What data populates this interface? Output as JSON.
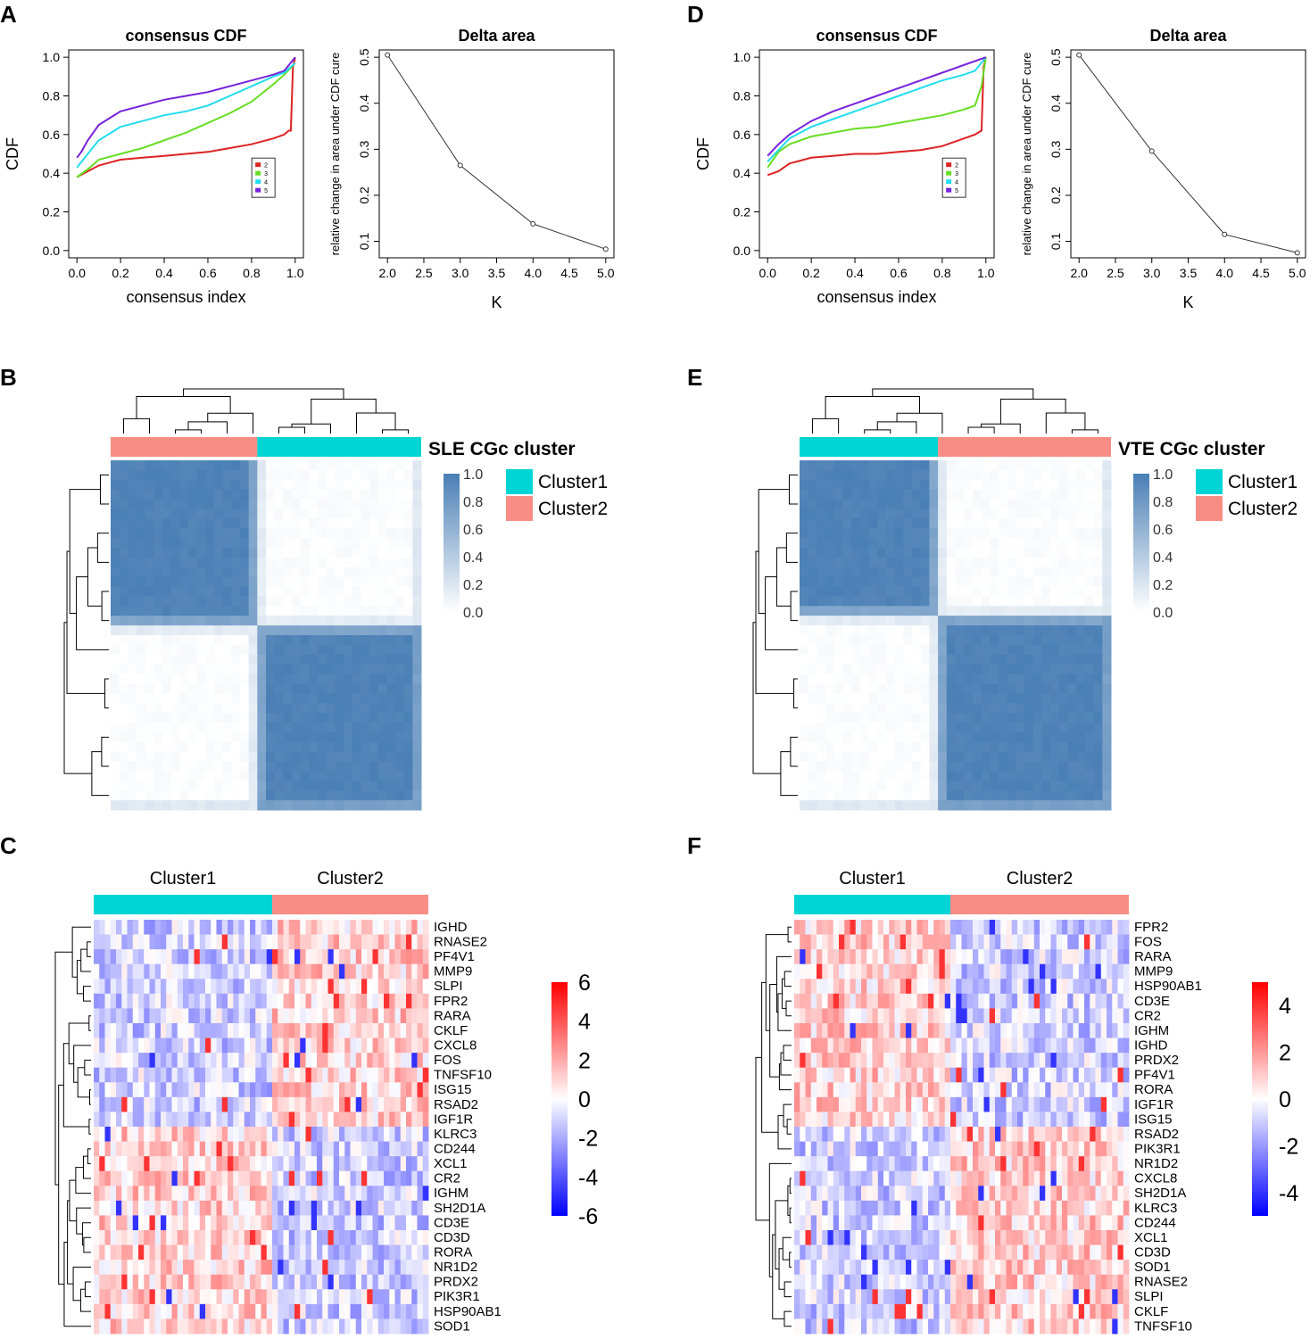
{
  "panel_letters": {
    "A": "A",
    "B": "B",
    "C": "C",
    "D": "D",
    "E": "E",
    "F": "F"
  },
  "colors": {
    "cluster1": "#00d4d4",
    "cluster2": "#f78d85",
    "consensus_high": "#4a7fb5",
    "heat_high": "#ff0000",
    "heat_low": "#0000ff",
    "k2": "#dd2222",
    "k3": "#66dd22",
    "k4": "#22ddee",
    "k5": "#7722dd"
  },
  "chart_data": [
    {
      "id": "A_cdf",
      "type": "line",
      "title": "consensus CDF",
      "xlabel": "consensus index",
      "ylabel": "CDF",
      "xlim": [
        0,
        1
      ],
      "ylim": [
        0,
        1
      ],
      "xticks": [
        "0.0",
        "0.2",
        "0.4",
        "0.6",
        "0.8",
        "1.0"
      ],
      "yticks": [
        "0.0",
        "0.2",
        "0.4",
        "0.6",
        "0.8",
        "1.0"
      ],
      "legend": [
        "2",
        "3",
        "4",
        "5"
      ],
      "series": [
        {
          "name": "2",
          "x": [
            0,
            0.05,
            0.1,
            0.2,
            0.3,
            0.4,
            0.5,
            0.6,
            0.7,
            0.8,
            0.9,
            0.95,
            0.97,
            0.98,
            0.99,
            1.0
          ],
          "y": [
            0.38,
            0.41,
            0.44,
            0.47,
            0.48,
            0.49,
            0.5,
            0.51,
            0.53,
            0.55,
            0.58,
            0.6,
            0.62,
            0.62,
            0.95,
            1.0
          ]
        },
        {
          "name": "3",
          "x": [
            0,
            0.05,
            0.1,
            0.2,
            0.3,
            0.4,
            0.5,
            0.6,
            0.7,
            0.8,
            0.9,
            0.95,
            1.0
          ],
          "y": [
            0.38,
            0.42,
            0.47,
            0.5,
            0.53,
            0.57,
            0.61,
            0.66,
            0.71,
            0.77,
            0.86,
            0.91,
            0.97
          ]
        },
        {
          "name": "4",
          "x": [
            0,
            0.05,
            0.1,
            0.2,
            0.3,
            0.4,
            0.5,
            0.6,
            0.7,
            0.8,
            0.9,
            0.95,
            1.0
          ],
          "y": [
            0.43,
            0.5,
            0.57,
            0.64,
            0.67,
            0.7,
            0.72,
            0.75,
            0.8,
            0.85,
            0.9,
            0.92,
            0.97
          ]
        },
        {
          "name": "5",
          "x": [
            0,
            0.02,
            0.05,
            0.1,
            0.2,
            0.3,
            0.4,
            0.5,
            0.6,
            0.7,
            0.8,
            0.9,
            0.95,
            1.0
          ],
          "y": [
            0.48,
            0.51,
            0.57,
            0.65,
            0.72,
            0.75,
            0.78,
            0.8,
            0.82,
            0.85,
            0.88,
            0.91,
            0.93,
            1.0
          ]
        }
      ]
    },
    {
      "id": "A_delta",
      "type": "line",
      "title": "Delta area",
      "xlabel": "K",
      "ylabel": "relative change in area under CDF cure",
      "xlim": [
        2,
        5
      ],
      "ylim": [
        0.08,
        0.5
      ],
      "xticks": [
        "2.0",
        "2.5",
        "3.0",
        "3.5",
        "4.0",
        "4.5",
        "5.0"
      ],
      "yticks": [
        "0.1",
        "0.2",
        "0.3",
        "0.4",
        "0.5"
      ],
      "series": [
        {
          "name": "delta",
          "x": [
            2,
            3,
            4,
            5
          ],
          "y": [
            0.505,
            0.265,
            0.138,
            0.083
          ]
        }
      ]
    },
    {
      "id": "D_cdf",
      "type": "line",
      "title": "consensus CDF",
      "xlabel": "consensus index",
      "ylabel": "CDF",
      "xlim": [
        0,
        1
      ],
      "ylim": [
        0,
        1
      ],
      "xticks": [
        "0.0",
        "0.2",
        "0.4",
        "0.6",
        "0.8",
        "1.0"
      ],
      "yticks": [
        "0.0",
        "0.2",
        "0.4",
        "0.6",
        "0.8",
        "1.0"
      ],
      "legend": [
        "2",
        "3",
        "4",
        "5"
      ],
      "series": [
        {
          "name": "2",
          "x": [
            0,
            0.05,
            0.1,
            0.2,
            0.3,
            0.4,
            0.5,
            0.6,
            0.7,
            0.8,
            0.9,
            0.95,
            0.98,
            0.99,
            1.0
          ],
          "y": [
            0.39,
            0.41,
            0.45,
            0.48,
            0.49,
            0.5,
            0.5,
            0.51,
            0.52,
            0.54,
            0.58,
            0.6,
            0.62,
            0.95,
            1.0
          ]
        },
        {
          "name": "3",
          "x": [
            0,
            0.05,
            0.1,
            0.2,
            0.3,
            0.4,
            0.5,
            0.6,
            0.7,
            0.8,
            0.9,
            0.95,
            0.98,
            1.0
          ],
          "y": [
            0.43,
            0.51,
            0.55,
            0.59,
            0.61,
            0.63,
            0.64,
            0.66,
            0.68,
            0.7,
            0.73,
            0.75,
            0.85,
            1.0
          ]
        },
        {
          "name": "4",
          "x": [
            0,
            0.05,
            0.1,
            0.2,
            0.3,
            0.4,
            0.5,
            0.6,
            0.7,
            0.8,
            0.9,
            0.95,
            1.0
          ],
          "y": [
            0.46,
            0.52,
            0.58,
            0.64,
            0.68,
            0.72,
            0.76,
            0.8,
            0.84,
            0.88,
            0.91,
            0.93,
            1.0
          ]
        },
        {
          "name": "5",
          "x": [
            0,
            0.05,
            0.1,
            0.2,
            0.3,
            0.4,
            0.5,
            0.6,
            0.7,
            0.8,
            0.9,
            0.95,
            1.0
          ],
          "y": [
            0.49,
            0.55,
            0.6,
            0.67,
            0.72,
            0.76,
            0.8,
            0.84,
            0.88,
            0.92,
            0.96,
            0.98,
            1.0
          ]
        }
      ]
    },
    {
      "id": "D_delta",
      "type": "line",
      "title": "Delta area",
      "xlabel": "K",
      "ylabel": "relative change in area under CDF cure",
      "xlim": [
        2,
        5
      ],
      "ylim": [
        0.08,
        0.5
      ],
      "xticks": [
        "2.0",
        "2.5",
        "3.0",
        "3.5",
        "4.0",
        "4.5",
        "5.0"
      ],
      "yticks": [
        "0.1",
        "0.2",
        "0.3",
        "0.4",
        "0.5"
      ],
      "series": [
        {
          "name": "delta",
          "x": [
            2,
            3,
            4,
            5
          ],
          "y": [
            0.505,
            0.296,
            0.115,
            0.075
          ]
        }
      ]
    },
    {
      "id": "B_consensus",
      "type": "heatmap",
      "title": "SLE CGc cluster",
      "annotation_order": [
        "Cluster2",
        "Cluster1"
      ],
      "block_fraction": [
        0.47,
        0.53
      ],
      "legend": [
        "Cluster1",
        "Cluster2"
      ],
      "scale_ticks": [
        "1.0",
        "0.8",
        "0.6",
        "0.4",
        "0.2",
        "0.0"
      ]
    },
    {
      "id": "E_consensus",
      "type": "heatmap",
      "title": "VTE CGc cluster",
      "annotation_order": [
        "Cluster1",
        "Cluster2"
      ],
      "block_fraction": [
        0.45,
        0.55
      ],
      "legend": [
        "Cluster1",
        "Cluster2"
      ],
      "scale_ticks": [
        "1.0",
        "0.8",
        "0.6",
        "0.4",
        "0.2",
        "0.0"
      ]
    },
    {
      "id": "C_expression",
      "type": "heatmap",
      "clusters": [
        "Cluster1",
        "Cluster2"
      ],
      "cluster_fraction": [
        0.54,
        0.46
      ],
      "genes": [
        "IGHD",
        "RNASE2",
        "PF4V1",
        "MMP9",
        "SLPI",
        "FPR2",
        "RARA",
        "CKLF",
        "CXCL8",
        "FOS",
        "TNFSF10",
        "ISG15",
        "RSAD2",
        "IGF1R",
        "KLRC3",
        "CD244",
        "XCL1",
        "CR2",
        "IGHM",
        "SH2D1A",
        "CD3E",
        "CD3D",
        "RORA",
        "NR1D2",
        "PRDX2",
        "PIK3R1",
        "HSP90AB1",
        "SOD1"
      ],
      "scale_ticks": [
        "6",
        "4",
        "2",
        "0",
        "-2",
        "-4",
        "-6"
      ],
      "scale_range": [
        -6,
        6
      ]
    },
    {
      "id": "F_expression",
      "type": "heatmap",
      "clusters": [
        "Cluster1",
        "Cluster2"
      ],
      "cluster_fraction": [
        0.47,
        0.53
      ],
      "genes": [
        "FPR2",
        "FOS",
        "RARA",
        "MMP9",
        "HSP90AB1",
        "CD3E",
        "CR2",
        "IGHM",
        "IGHD",
        "PRDX2",
        "PF4V1",
        "RORA",
        "IGF1R",
        "ISG15",
        "RSAD2",
        "PIK3R1",
        "NR1D2",
        "CXCL8",
        "SH2D1A",
        "KLRC3",
        "CD244",
        "XCL1",
        "CD3D",
        "SOD1",
        "RNASE2",
        "SLPI",
        "CKLF",
        "TNFSF10"
      ],
      "scale_ticks": [
        "4",
        "2",
        "0",
        "-2",
        "-4"
      ],
      "scale_range": [
        -5,
        5
      ]
    }
  ]
}
